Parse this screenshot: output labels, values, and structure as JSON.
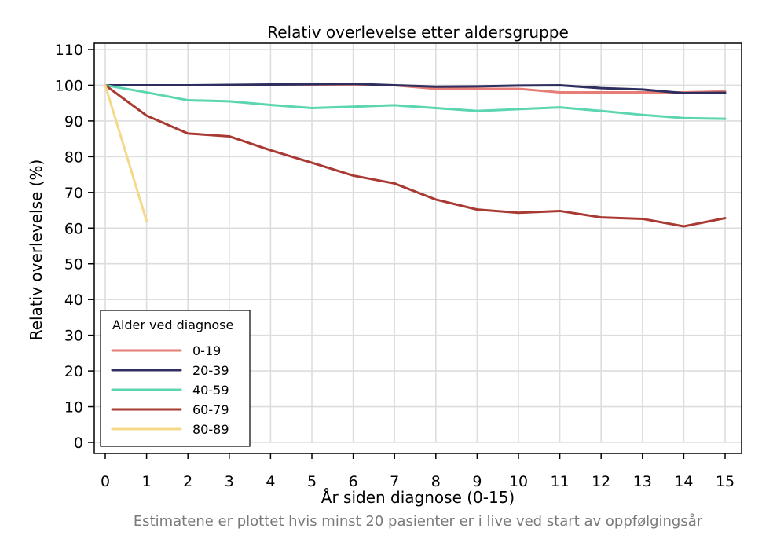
{
  "chart_data": {
    "type": "line",
    "title": "Relativ overlevelse etter aldersgruppe",
    "xlabel": "År siden diagnose (0-15)",
    "ylabel": "Relativ overlevelse (%)",
    "note": "Estimatene er plottet hvis minst 20 pasienter er i live ved start av oppfølgingsår",
    "xlim": [
      0,
      15
    ],
    "ylim": [
      0,
      110
    ],
    "xticks": [
      0,
      1,
      2,
      3,
      4,
      5,
      6,
      7,
      8,
      9,
      10,
      11,
      12,
      13,
      14,
      15
    ],
    "yticks": [
      0,
      10,
      20,
      30,
      40,
      50,
      60,
      70,
      80,
      90,
      100,
      110
    ],
    "grid": true,
    "legend": {
      "title": "Alder ved diagnose",
      "placement": "bottom-left"
    },
    "series": [
      {
        "name": "0-19",
        "color": "#e67d76",
        "x": [
          0,
          1,
          2,
          3,
          4,
          5,
          6,
          7,
          8,
          9,
          10,
          11,
          12,
          13,
          14,
          15
        ],
        "values": [
          100,
          100,
          100,
          100,
          100,
          100.2,
          100.2,
          100,
          99,
          99,
          99,
          98,
          98,
          98,
          98,
          98.3
        ]
      },
      {
        "name": "20-39",
        "color": "#2f2f5f",
        "x": [
          0,
          1,
          2,
          3,
          4,
          5,
          6,
          7,
          8,
          9,
          10,
          11,
          12,
          13,
          14,
          15
        ],
        "values": [
          100,
          100,
          100,
          100.1,
          100.2,
          100.3,
          100.4,
          100,
          99.6,
          99.7,
          99.9,
          100,
          99.2,
          98.8,
          97.8,
          97.9
        ]
      },
      {
        "name": "40-59",
        "color": "#5bd6b0",
        "x": [
          0,
          1,
          2,
          3,
          4,
          5,
          6,
          7,
          8,
          9,
          10,
          11,
          12,
          13,
          14,
          15
        ],
        "values": [
          100,
          98,
          95.8,
          95.5,
          94.5,
          93.6,
          94,
          94.4,
          93.6,
          92.8,
          93.3,
          93.8,
          92.8,
          91.7,
          90.8,
          90.6
        ]
      },
      {
        "name": "60-79",
        "color": "#a93a33",
        "x": [
          0,
          1,
          2,
          3,
          4,
          5,
          6,
          7,
          8,
          9,
          10,
          11,
          12,
          13,
          14,
          15
        ],
        "values": [
          100,
          91.5,
          86.5,
          85.7,
          81.8,
          78.3,
          74.7,
          72.5,
          68,
          65.2,
          64.3,
          64.8,
          63,
          62.6,
          60.5,
          62.8
        ]
      },
      {
        "name": "80-89",
        "color": "#f5d88a",
        "x": [
          0,
          1
        ],
        "values": [
          100,
          62
        ]
      }
    ]
  }
}
